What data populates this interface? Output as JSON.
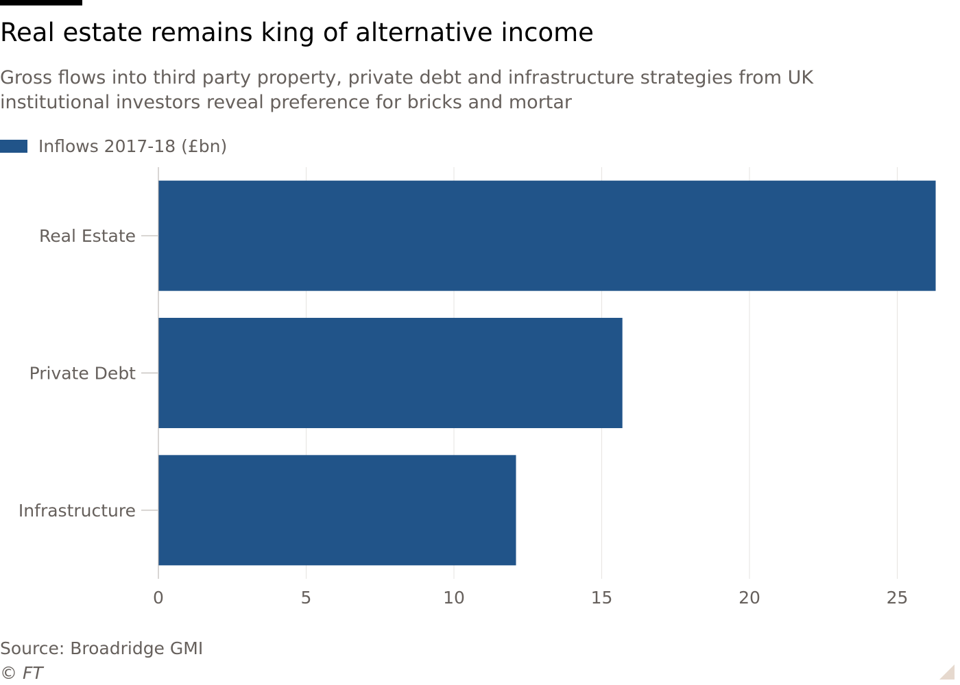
{
  "header": {
    "title": "Real estate remains king of alternative income",
    "subtitle": "Gross flows into third party property, private debt and infrastructure strategies from UK institutional investors reveal preference for bricks and mortar"
  },
  "legend": {
    "label": "Inflows 2017-18 (£bn)",
    "color": "#215489"
  },
  "footer": {
    "source": "Source: Broadridge GMI",
    "copyright": "© FT"
  },
  "chart_data": {
    "type": "bar",
    "orientation": "horizontal",
    "categories": [
      "Real Estate",
      "Private Debt",
      "Infrastructure"
    ],
    "series": [
      {
        "name": "Inflows 2017-18 (£bn)",
        "values": [
          26.3,
          15.7,
          12.1
        ],
        "color": "#215489"
      }
    ],
    "xlim": [
      0,
      26.5
    ],
    "xticks": [
      0,
      5,
      10,
      15,
      20,
      25
    ],
    "grid": true,
    "legend_position": "top-left"
  }
}
